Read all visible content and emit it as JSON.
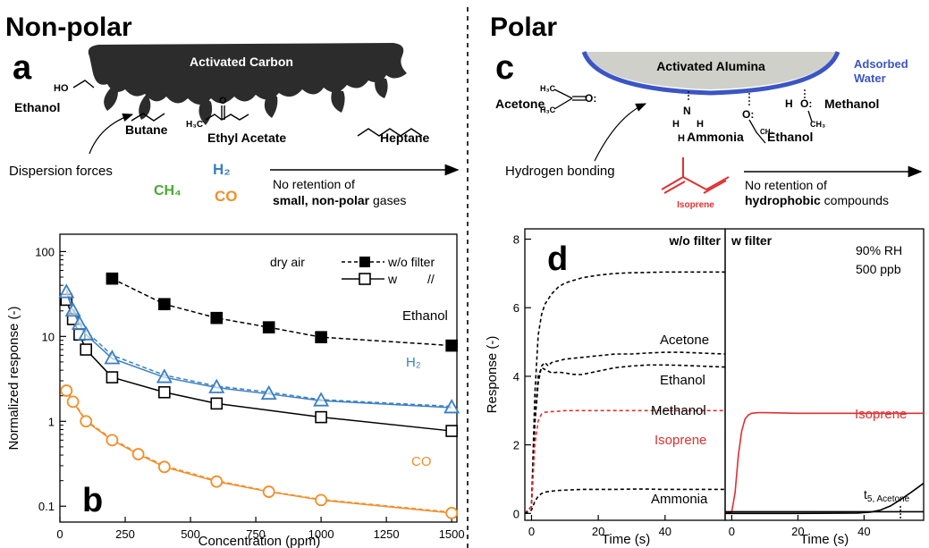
{
  "headers": {
    "left": "Non-polar",
    "right": "Polar"
  },
  "panel_labels": {
    "a": "a",
    "b": "b",
    "c": "c",
    "d": "d"
  },
  "panel_a": {
    "material": "Activated Carbon",
    "molecules": [
      "Ethanol",
      "Butane",
      "Ethyl Acetate",
      "Heptane"
    ],
    "atom_labels": {
      "ho": "HO",
      "h3c": "H₃C",
      "o": "O"
    },
    "force": "Dispersion forces",
    "small_gases": {
      "h2": "H₂",
      "ch4": "CH₄",
      "co": "CO"
    },
    "arrow_text": {
      "line1": "No retention of",
      "line2_bold": "small, non-polar",
      "line2_rest": " gases"
    }
  },
  "panel_c": {
    "material": "Activated Alumina",
    "water_label": [
      "Adsorbed",
      "Water"
    ],
    "molecules": [
      "Acetone",
      "Ammonia",
      "Ethanol",
      "Methanol"
    ],
    "atom_labels": {
      "ch3": "CH₃",
      "h3c": "H₃C",
      "oh": "O:",
      "h": "H",
      "n": "N",
      "hn": "H",
      "ch2": "CH₂"
    },
    "force": "Hydrogen bonding",
    "isoprene": "Isoprene",
    "arrow_text": {
      "line1": "No retention of",
      "line2_bold": "hydrophobic",
      "line2_rest": " compounds"
    }
  },
  "colors": {
    "ethanol": "#000000",
    "h2": "#3a7fc1",
    "co": "#f28e2b",
    "ch4": "#4aa832",
    "isoprene": "#e03030",
    "carbon": "#2c2c2c",
    "alumina": "#d0d0cb",
    "water": "#3b55c4"
  },
  "chart_data": [
    {
      "id": "b",
      "type": "line",
      "xlabel": "Concentration (ppm)",
      "ylabel": "Normalized response (-)",
      "xlim": [
        0,
        1520
      ],
      "ylim": [
        0.065,
        160
      ],
      "y_scale": "log",
      "xticks": [
        0,
        250,
        500,
        750,
        1000,
        1250,
        1500
      ],
      "yticks": [
        0.1,
        1,
        10,
        100
      ],
      "ytick_labels": [
        "0.1",
        "1",
        "10",
        "100"
      ],
      "legend": {
        "title": "dry air",
        "wo_filter": "w/o filter",
        "w": "w",
        "ditto": "//"
      },
      "series": [
        {
          "name": "Ethanol",
          "marker": "square",
          "color": "#000000",
          "wo_filter": {
            "x": [
              200,
              400,
              600,
              800,
              1000,
              1500
            ],
            "y": [
              48,
              24,
              16.5,
              12.8,
              9.8,
              7.8
            ]
          },
          "w_filter": {
            "x": [
              25,
              50,
              75,
              100,
              200,
              400,
              600,
              1000,
              1500
            ],
            "y": [
              27,
              16,
              10.5,
              7.0,
              3.3,
              2.2,
              1.62,
              1.12,
              0.77
            ]
          }
        },
        {
          "name": "H₂",
          "marker": "triangle",
          "color": "#3a7fc1",
          "wo_filter": {
            "x": [
              25,
              50,
              75,
              100,
              200,
              400,
              600,
              800,
              1000,
              1500
            ],
            "y": [
              36,
              22,
              15,
              11.5,
              6.0,
              3.5,
              2.6,
              2.2,
              1.8,
              1.5
            ]
          },
          "w_filter": {
            "x": [
              25,
              50,
              75,
              100,
              200,
              400,
              600,
              800,
              1000,
              1500
            ],
            "y": [
              33,
              20,
              14,
              10.5,
              5.5,
              3.3,
              2.5,
              2.1,
              1.75,
              1.45
            ]
          }
        },
        {
          "name": "CO",
          "marker": "circle",
          "color": "#f28e2b",
          "wo_filter": {
            "x": [
              25,
              50,
              100,
              200,
              300,
              400,
              600,
              800,
              1000,
              1500
            ],
            "y": [
              2.4,
              1.75,
              1.02,
              0.62,
              0.42,
              0.3,
              0.2,
              0.15,
              0.12,
              0.085
            ]
          },
          "w_filter": {
            "x": [
              25,
              50,
              100,
              200,
              300,
              400,
              600,
              800,
              1000,
              1500
            ],
            "y": [
              2.3,
              1.7,
              1.0,
              0.6,
              0.41,
              0.29,
              0.195,
              0.148,
              0.118,
              0.083
            ]
          }
        }
      ]
    },
    {
      "id": "d",
      "type": "line",
      "ylabel": "Response (-)",
      "ylim": [
        -0.2,
        8.3
      ],
      "yticks": [
        0,
        2,
        4,
        6,
        8
      ],
      "subplots": [
        {
          "title": "w/o filter",
          "xlabel": "Time (s)",
          "xlim": [
            -2,
            58
          ],
          "xticks": [
            0,
            20,
            40
          ],
          "series": [
            {
              "name": "Acetone",
              "color": "#000000",
              "dash": true,
              "x": [
                -2,
                0,
                1,
                2,
                3,
                4,
                6,
                8,
                10,
                15,
                20,
                25,
                30,
                35,
                40,
                45,
                50,
                55,
                58
              ],
              "y": [
                0,
                0.2,
                3.5,
                5.2,
                5.8,
                6.1,
                6.4,
                6.6,
                6.72,
                6.87,
                6.95,
                7.0,
                7.02,
                7.03,
                7.04,
                7.04,
                7.04,
                7.04,
                7.04
              ]
            },
            {
              "name": "Ethanol",
              "color": "#000000",
              "dash": true,
              "x": [
                -2,
                0,
                1,
                2,
                3,
                4,
                5,
                6,
                8,
                10,
                15,
                20,
                25,
                30,
                35,
                40,
                45,
                50,
                55,
                58
              ],
              "y": [
                0,
                0.2,
                2.6,
                3.8,
                4.3,
                4.4,
                4.3,
                4.4,
                4.45,
                4.5,
                4.55,
                4.6,
                4.65,
                4.65,
                4.68,
                4.7,
                4.7,
                4.68,
                4.66,
                4.65
              ]
            },
            {
              "name": "Methanol",
              "color": "#000000",
              "dash": true,
              "x": [
                -2,
                0,
                1,
                2,
                3,
                4,
                6,
                8,
                10,
                12,
                15,
                20,
                25,
                30,
                35,
                40,
                45,
                50,
                55,
                58
              ],
              "y": [
                0,
                0.2,
                2.8,
                4.0,
                4.25,
                4.2,
                4.1,
                4.12,
                4.1,
                4.06,
                4.05,
                4.15,
                4.25,
                4.3,
                4.33,
                4.33,
                4.32,
                4.3,
                4.28,
                4.27
              ]
            },
            {
              "name": "Isoprene",
              "color": "#e03030",
              "dash": true,
              "x": [
                -2,
                0,
                1,
                2,
                3,
                4,
                6,
                8,
                10,
                15,
                20,
                30,
                40,
                50,
                58
              ],
              "y": [
                0,
                0.2,
                2.0,
                2.7,
                2.9,
                2.95,
                2.97,
                2.98,
                3.0,
                3.0,
                3.0,
                3.0,
                3.0,
                3.0,
                3.0
              ]
            },
            {
              "name": "Ammonia",
              "color": "#000000",
              "dash": true,
              "x": [
                -2,
                0,
                1,
                2,
                3,
                4,
                6,
                8,
                10,
                15,
                20,
                25,
                30,
                35,
                40,
                45,
                50,
                55,
                58
              ],
              "y": [
                0,
                0.1,
                0.35,
                0.5,
                0.58,
                0.62,
                0.65,
                0.67,
                0.68,
                0.7,
                0.7,
                0.7,
                0.71,
                0.71,
                0.7,
                0.7,
                0.7,
                0.7,
                0.7
              ]
            }
          ]
        },
        {
          "title": "w filter",
          "xlabel": "Time (s)",
          "xlim": [
            -2,
            58
          ],
          "xticks": [
            0,
            20,
            40
          ],
          "annotations": [
            "90% RH",
            "500 ppb"
          ],
          "marker_label": {
            "base": "t",
            "sub": "5, Acetone",
            "x": 51
          },
          "series": [
            {
              "name": "Isoprene",
              "color": "#e03030",
              "dash": false,
              "x": [
                -2,
                0,
                1,
                2,
                3,
                4,
                5,
                6,
                8,
                10,
                15,
                20,
                30,
                40,
                50,
                58
              ],
              "y": [
                0,
                0.05,
                0.6,
                1.7,
                2.4,
                2.75,
                2.87,
                2.92,
                2.94,
                2.94,
                2.93,
                2.92,
                2.92,
                2.92,
                2.92,
                2.92
              ]
            },
            {
              "name": "Acetone",
              "color": "#000000",
              "dash": false,
              "x": [
                -2,
                0,
                20,
                38,
                42,
                45,
                48,
                51,
                54,
                58
              ],
              "y": [
                0,
                0,
                0,
                0.01,
                0.04,
                0.1,
                0.22,
                0.4,
                0.6,
                0.88
              ]
            },
            {
              "name": "baseline",
              "color": "#000000",
              "dash": false,
              "x": [
                -2,
                58
              ],
              "y": [
                0.05,
                0.05
              ]
            }
          ]
        }
      ],
      "labels": {
        "acetone": "Acetone",
        "ethanol": "Ethanol",
        "methanol": "Methanol",
        "isoprene": "Isoprene",
        "ammonia": "Ammonia"
      }
    }
  ]
}
